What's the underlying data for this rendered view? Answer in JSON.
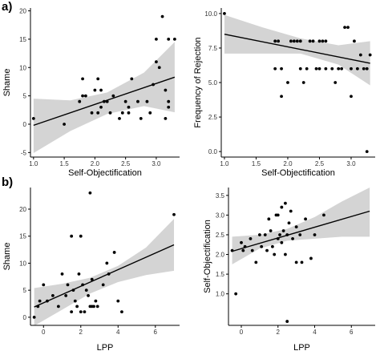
{
  "panel_labels": [
    "a)",
    "b)"
  ],
  "chart_data": [
    {
      "type": "scatter",
      "title": "",
      "xlabel": "Self-Objectification",
      "ylabel": "Shame",
      "xlim": [
        0.95,
        3.38
      ],
      "ylim": [
        -5.8,
        20.5
      ],
      "xticks": [
        1.0,
        1.5,
        2.0,
        2.5,
        3.0
      ],
      "xtick_labels": [
        "1.0",
        "1.5",
        "2.0",
        "2.5",
        "3.0"
      ],
      "yticks": [
        -5,
        0,
        5,
        10,
        15,
        20
      ],
      "ytick_labels": [
        "-5",
        "0",
        "5",
        "10",
        "15",
        "20"
      ],
      "fit": {
        "x": [
          1.0,
          3.3
        ],
        "y": [
          -0.2,
          8.3
        ]
      },
      "band": {
        "x": [
          1.0,
          1.6,
          2.2,
          2.8,
          3.3
        ],
        "lower": [
          -5.1,
          -1.2,
          1.8,
          3.2,
          2.1
        ],
        "upper": [
          4.5,
          4.2,
          5.6,
          9.1,
          14.5
        ]
      },
      "points": [
        [
          1.0,
          1
        ],
        [
          1.5,
          0
        ],
        [
          1.75,
          4
        ],
        [
          1.8,
          8
        ],
        [
          1.8,
          5
        ],
        [
          1.85,
          5
        ],
        [
          1.95,
          2
        ],
        [
          2.0,
          6
        ],
        [
          2.05,
          2
        ],
        [
          2.05,
          8
        ],
        [
          2.1,
          6
        ],
        [
          2.1,
          3
        ],
        [
          2.15,
          4
        ],
        [
          2.2,
          4
        ],
        [
          2.25,
          2
        ],
        [
          2.3,
          5
        ],
        [
          2.4,
          1
        ],
        [
          2.45,
          2
        ],
        [
          2.5,
          4
        ],
        [
          2.55,
          3
        ],
        [
          2.55,
          2
        ],
        [
          2.6,
          8
        ],
        [
          2.7,
          4
        ],
        [
          2.75,
          1
        ],
        [
          2.85,
          4
        ],
        [
          2.9,
          2
        ],
        [
          2.95,
          7
        ],
        [
          3.0,
          11
        ],
        [
          3.0,
          15
        ],
        [
          3.05,
          10
        ],
        [
          3.1,
          19
        ],
        [
          3.15,
          6
        ],
        [
          3.15,
          1
        ],
        [
          3.2,
          4
        ],
        [
          3.2,
          3
        ],
        [
          3.2,
          15
        ],
        [
          3.3,
          15
        ]
      ]
    },
    {
      "type": "scatter",
      "title": "",
      "xlabel": "Self-Objectification",
      "ylabel": "Frequency of Rejection",
      "xlim": [
        0.95,
        3.38
      ],
      "ylim": [
        -0.4,
        10.4
      ],
      "xticks": [
        1.0,
        1.5,
        2.0,
        2.5,
        3.0
      ],
      "xtick_labels": [
        "1.0",
        "1.5",
        "2.0",
        "2.5",
        "3.0"
      ],
      "yticks": [
        0.0,
        2.5,
        5.0,
        7.5,
        10.0
      ],
      "ytick_labels": [
        "0.0",
        "2.5",
        "5.0",
        "7.5",
        "10.0"
      ],
      "fit": {
        "x": [
          1.0,
          3.3
        ],
        "y": [
          8.5,
          6.4
        ]
      },
      "band": {
        "x": [
          1.0,
          1.6,
          2.2,
          2.8,
          3.3
        ],
        "lower": [
          7.1,
          7.1,
          7.1,
          6.3,
          4.8
        ],
        "upper": [
          9.9,
          9.0,
          8.2,
          7.7,
          8.0
        ]
      },
      "points": [
        [
          1.0,
          10
        ],
        [
          1.8,
          8
        ],
        [
          1.8,
          6
        ],
        [
          1.85,
          8
        ],
        [
          1.9,
          4
        ],
        [
          1.9,
          6
        ],
        [
          2.0,
          5
        ],
        [
          2.05,
          8
        ],
        [
          2.1,
          8
        ],
        [
          2.15,
          8
        ],
        [
          2.2,
          8
        ],
        [
          2.2,
          6
        ],
        [
          2.25,
          5
        ],
        [
          2.3,
          6
        ],
        [
          2.35,
          8
        ],
        [
          2.4,
          8
        ],
        [
          2.45,
          6
        ],
        [
          2.5,
          8
        ],
        [
          2.5,
          6
        ],
        [
          2.55,
          8
        ],
        [
          2.6,
          8
        ],
        [
          2.6,
          6
        ],
        [
          2.7,
          6
        ],
        [
          2.75,
          5
        ],
        [
          2.8,
          6
        ],
        [
          2.85,
          6
        ],
        [
          2.9,
          9
        ],
        [
          2.95,
          9
        ],
        [
          3.0,
          4
        ],
        [
          3.0,
          6
        ],
        [
          3.05,
          8
        ],
        [
          3.1,
          6
        ],
        [
          3.15,
          7
        ],
        [
          3.2,
          6
        ],
        [
          3.25,
          0
        ],
        [
          3.25,
          6
        ],
        [
          3.3,
          7
        ]
      ]
    },
    {
      "type": "scatter",
      "title": "",
      "xlabel": "LPP",
      "ylabel": "Shame",
      "xlim": [
        -0.7,
        7.3
      ],
      "ylim": [
        -1.5,
        24.0
      ],
      "xticks": [
        0,
        2,
        4,
        6
      ],
      "xtick_labels": [
        "0",
        "2",
        "4",
        "6"
      ],
      "yticks": [
        0,
        5,
        10,
        15,
        20
      ],
      "ytick_labels": [
        "0",
        "5",
        "10",
        "15",
        "20"
      ],
      "fit": {
        "x": [
          -0.5,
          7.0
        ],
        "y": [
          1.9,
          13.4
        ]
      },
      "band": {
        "x": [
          -0.5,
          1.0,
          2.5,
          4.0,
          5.5,
          7.0
        ],
        "lower": [
          -1.6,
          1.4,
          4.4,
          6.5,
          7.8,
          8.6
        ],
        "upper": [
          5.4,
          6.2,
          7.3,
          9.5,
          12.9,
          18.2
        ]
      },
      "points": [
        [
          -0.5,
          0
        ],
        [
          -0.3,
          2
        ],
        [
          -0.2,
          3
        ],
        [
          0.0,
          6
        ],
        [
          0.2,
          3
        ],
        [
          0.5,
          4
        ],
        [
          0.8,
          2
        ],
        [
          1.0,
          8
        ],
        [
          1.2,
          4
        ],
        [
          1.3,
          6
        ],
        [
          1.5,
          15
        ],
        [
          1.5,
          1
        ],
        [
          1.6,
          5
        ],
        [
          1.7,
          3
        ],
        [
          1.8,
          2
        ],
        [
          1.9,
          8
        ],
        [
          2.0,
          15
        ],
        [
          2.0,
          1
        ],
        [
          2.1,
          6
        ],
        [
          2.2,
          1
        ],
        [
          2.3,
          5
        ],
        [
          2.4,
          4
        ],
        [
          2.5,
          23
        ],
        [
          2.5,
          2
        ],
        [
          2.6,
          7
        ],
        [
          2.6,
          2
        ],
        [
          2.7,
          2
        ],
        [
          2.8,
          3
        ],
        [
          2.9,
          2
        ],
        [
          3.2,
          6
        ],
        [
          3.4,
          10
        ],
        [
          3.5,
          8
        ],
        [
          3.8,
          12
        ],
        [
          4.0,
          3
        ],
        [
          4.2,
          1
        ],
        [
          7.0,
          19
        ]
      ]
    },
    {
      "type": "scatter",
      "title": "",
      "xlabel": "LPP",
      "ylabel": "Self-Objectification",
      "xlim": [
        -0.7,
        7.3
      ],
      "ylim": [
        0.2,
        3.7
      ],
      "xticks": [
        0,
        2,
        4,
        6
      ],
      "xtick_labels": [
        "0",
        "2",
        "4",
        "6"
      ],
      "yticks": [
        1.0,
        1.5,
        2.0,
        2.5,
        3.0,
        3.5
      ],
      "ytick_labels": [
        "1.0",
        "1.5",
        "2.0",
        "2.5",
        "3.0",
        "3.5"
      ],
      "fit": {
        "x": [
          -0.5,
          7.0
        ],
        "y": [
          2.08,
          3.1
        ]
      },
      "band": {
        "x": [
          -0.5,
          1.0,
          2.5,
          4.0,
          5.5,
          7.0
        ],
        "lower": [
          1.75,
          2.15,
          2.35,
          2.4,
          2.45,
          2.45
        ],
        "upper": [
          2.45,
          2.5,
          2.65,
          2.95,
          3.35,
          3.7
        ]
      },
      "points": [
        [
          -0.5,
          2.1
        ],
        [
          -0.3,
          1.0
        ],
        [
          0.0,
          2.3
        ],
        [
          0.1,
          2.1
        ],
        [
          0.2,
          2.2
        ],
        [
          0.5,
          2.4
        ],
        [
          0.6,
          2.1
        ],
        [
          0.8,
          1.8
        ],
        [
          1.0,
          2.5
        ],
        [
          1.1,
          2.2
        ],
        [
          1.3,
          2.5
        ],
        [
          1.4,
          2.1
        ],
        [
          1.5,
          2.9
        ],
        [
          1.6,
          2.6
        ],
        [
          1.7,
          2.2
        ],
        [
          1.8,
          2.0
        ],
        [
          1.9,
          3.0
        ],
        [
          2.0,
          2.4
        ],
        [
          2.0,
          3.0
        ],
        [
          2.1,
          2.5
        ],
        [
          2.2,
          3.2
        ],
        [
          2.2,
          2.3
        ],
        [
          2.3,
          2.6
        ],
        [
          2.4,
          3.3
        ],
        [
          2.4,
          2.0
        ],
        [
          2.5,
          2.5
        ],
        [
          2.5,
          0.3
        ],
        [
          2.6,
          2.8
        ],
        [
          2.7,
          3.1
        ],
        [
          2.8,
          2.4
        ],
        [
          3.0,
          2.7
        ],
        [
          3.0,
          1.8
        ],
        [
          3.2,
          2.5
        ],
        [
          3.3,
          1.8
        ],
        [
          3.5,
          2.9
        ],
        [
          3.8,
          1.9
        ],
        [
          4.0,
          2.5
        ],
        [
          4.5,
          3.0
        ]
      ]
    }
  ]
}
